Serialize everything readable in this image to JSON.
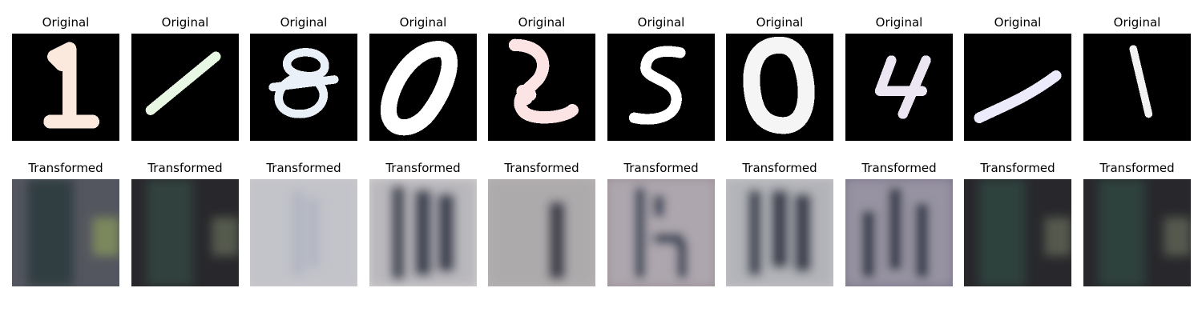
{
  "figure": {
    "rows": [
      {
        "caption": "Original",
        "kind": "mnist",
        "tiles": [
          {
            "digit": "1",
            "glyph_color": "#fbe9dd"
          },
          {
            "digit": "1",
            "glyph_color": "#e8f6e4"
          },
          {
            "digit": "8",
            "glyph_color": "#e9f0f8"
          },
          {
            "digit": "0",
            "glyph_color": "#ffffff"
          },
          {
            "digit": "2",
            "glyph_color": "#fde4e4"
          },
          {
            "digit": "5",
            "glyph_color": "#ffffff"
          },
          {
            "digit": "0",
            "glyph_color": "#f5f5f5"
          },
          {
            "digit": "4",
            "glyph_color": "#ebe6f1"
          },
          {
            "digit": "1",
            "glyph_color": "#ecebfb"
          },
          {
            "digit": "1",
            "glyph_color": "#f2f2f2"
          }
        ]
      },
      {
        "caption": "Transformed",
        "kind": "svhn-like",
        "tiles": [
          {
            "base": "#54565f",
            "stroke": "#2b3a3c",
            "accent": "#8c9e5c",
            "bg_dark": true
          },
          {
            "base": "#28282c",
            "stroke": "#33473f",
            "accent": "#69705c",
            "bg_dark": true
          },
          {
            "base": "#c8c8cc",
            "stroke": "#9ea4b8",
            "accent": "#b4b6c4",
            "bg_dark": false
          },
          {
            "base": "#d2d0d0",
            "stroke": "#2a3040",
            "accent": "#6b7080",
            "bg_dark": false
          },
          {
            "base": "#b8b4b4",
            "stroke": "#2c2e3a",
            "accent": "#8a8a92",
            "bg_dark": false
          },
          {
            "base": "#9c9298",
            "stroke": "#2c3448",
            "accent": "#e2e4ee",
            "bg_dark": false
          },
          {
            "base": "#c4c4c6",
            "stroke": "#262c38",
            "accent": "#7a8090",
            "bg_dark": false
          },
          {
            "base": "#7a7488",
            "stroke": "#283044",
            "accent": "#eef0f4",
            "bg_dark": false
          },
          {
            "base": "#28282c",
            "stroke": "#2e4540",
            "accent": "#6a6e5c",
            "bg_dark": true
          },
          {
            "base": "#28282c",
            "stroke": "#2e4540",
            "accent": "#6a6e5c",
            "bg_dark": true
          }
        ]
      }
    ]
  }
}
